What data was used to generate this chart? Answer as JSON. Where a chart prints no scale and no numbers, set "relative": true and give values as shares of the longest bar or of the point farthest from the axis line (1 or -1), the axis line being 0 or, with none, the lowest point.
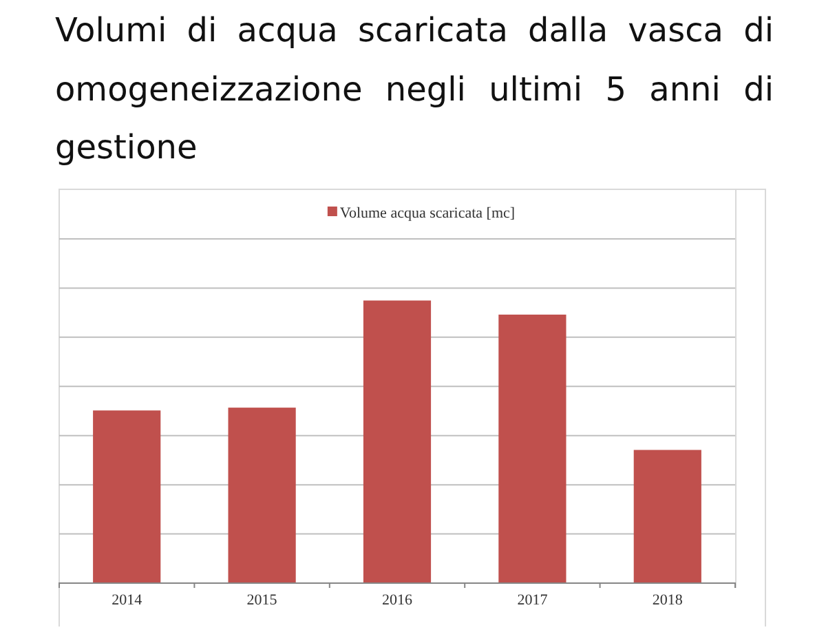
{
  "chart_data": {
    "type": "bar",
    "title": "Volumi di acqua scaricata dalla vasca di omogeneizzazione negli ultimi 5 anni di gestione",
    "categories": [
      "2014",
      "2015",
      "2016",
      "2017",
      "2018"
    ],
    "series": [
      {
        "name": "Volume acqua scaricata [mc]",
        "color": "#c0504d",
        "values": [
          0.61,
          0.62,
          1,
          0.95,
          0.47
        ]
      }
    ],
    "relative": true,
    "grid": true,
    "legend": "top"
  }
}
